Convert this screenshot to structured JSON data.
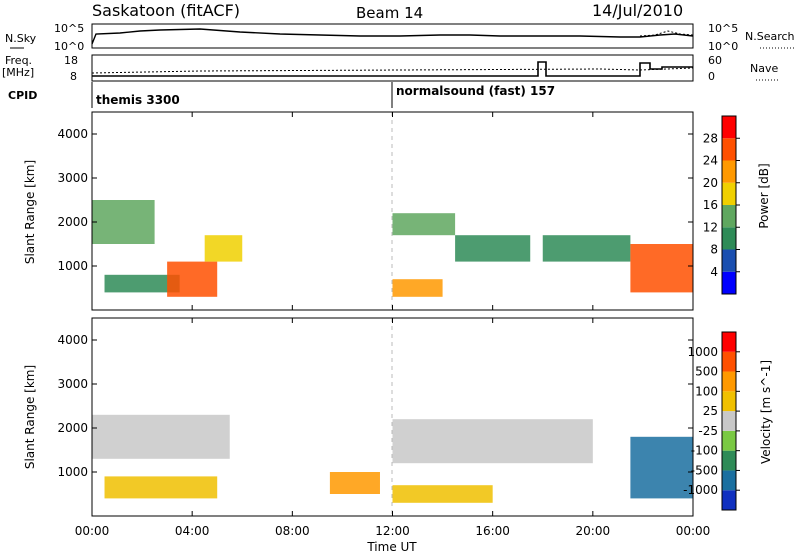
{
  "header": {
    "site": "Saskatoon (fitACF)",
    "beam": "Beam 14",
    "date": "14/Jul/2010"
  },
  "noise_panel": {
    "left_label": "N.Sky",
    "right_label": "N.Search",
    "left_ticks": [
      "10^5",
      "10^0"
    ],
    "right_ticks": [
      "10^5",
      "10^0"
    ]
  },
  "freq_panel": {
    "left_label_1": "Freq.",
    "left_label_2": "[MHz]",
    "left_ticks": [
      "18",
      "8"
    ],
    "right_label": "Nave",
    "right_ticks": [
      "60",
      "0"
    ]
  },
  "cpid_panel": {
    "label": "CPID",
    "segments": [
      {
        "label": "themis 3300",
        "start": "00:00"
      },
      {
        "label": "normalsound (fast) 157",
        "start": "12:00"
      }
    ]
  },
  "chart_data": [
    {
      "type": "heatmap",
      "quantity": "Power",
      "xlabel": "",
      "ylabel": "Slant Range [km]",
      "y_ticks": [
        "1000",
        "2000",
        "3000",
        "4000"
      ],
      "ylim": [
        0,
        4500
      ],
      "x_ticks": [
        "00:00",
        "04:00",
        "08:00",
        "12:00",
        "16:00",
        "20:00",
        "00:00"
      ],
      "colorbar": {
        "label": "Power [dB]",
        "ticks": [
          "4",
          "8",
          "12",
          "16",
          "20",
          "24",
          "28"
        ],
        "colors": [
          "#0000ff",
          "#1a4fb0",
          "#2e8b57",
          "#5fa75f",
          "#f0d000",
          "#ff9900",
          "#ff5000",
          "#ff0000"
        ]
      },
      "regions": [
        {
          "t0": 0.0,
          "t1": 2.5,
          "r0": 1500,
          "r1": 2500,
          "level": 14
        },
        {
          "t0": 0.5,
          "t1": 3.5,
          "r0": 400,
          "r1": 800,
          "level": 10
        },
        {
          "t0": 3.0,
          "t1": 5.0,
          "r0": 300,
          "r1": 1100,
          "level": 26
        },
        {
          "t0": 4.5,
          "t1": 6.0,
          "r0": 1100,
          "r1": 1700,
          "level": 16
        },
        {
          "t0": 12.0,
          "t1": 14.0,
          "r0": 300,
          "r1": 700,
          "level": 22
        },
        {
          "t0": 12.0,
          "t1": 14.5,
          "r0": 1700,
          "r1": 2200,
          "level": 14
        },
        {
          "t0": 14.5,
          "t1": 17.5,
          "r0": 1100,
          "r1": 1700,
          "level": 8
        },
        {
          "t0": 18.0,
          "t1": 21.5,
          "r0": 1100,
          "r1": 1700,
          "level": 8
        },
        {
          "t0": 21.5,
          "t1": 24.0,
          "r0": 400,
          "r1": 1500,
          "level": 24
        }
      ]
    },
    {
      "type": "heatmap",
      "quantity": "Velocity",
      "xlabel": "Time UT",
      "ylabel": "Slant Range [km]",
      "y_ticks": [
        "1000",
        "2000",
        "3000",
        "4000"
      ],
      "ylim": [
        0,
        4500
      ],
      "x_ticks": [
        "00:00",
        "04:00",
        "08:00",
        "12:00",
        "16:00",
        "20:00",
        "00:00"
      ],
      "colorbar": {
        "label": "Velocity [m s^-1]",
        "ticks": [
          "1000",
          "500",
          "100",
          "25",
          "-25",
          "-100",
          "-500",
          "-1000"
        ],
        "colors": [
          "#1030c0",
          "#1a6fa0",
          "#2e8b57",
          "#7ac943",
          "#c8c8c8",
          "#f0c000",
          "#ff9900",
          "#ff5000",
          "#ff0000"
        ]
      },
      "regions": [
        {
          "t0": 0.0,
          "t1": 5.5,
          "r0": 1300,
          "r1": 2300,
          "level": 0
        },
        {
          "t0": 0.5,
          "t1": 5.0,
          "r0": 400,
          "r1": 900,
          "level": -50
        },
        {
          "t0": 9.5,
          "t1": 11.5,
          "r0": 500,
          "r1": 1000,
          "level": -300
        },
        {
          "t0": 12.0,
          "t1": 16.0,
          "r0": 300,
          "r1": 700,
          "level": -60
        },
        {
          "t0": 12.0,
          "t1": 20.0,
          "r0": 1200,
          "r1": 2200,
          "level": 0
        },
        {
          "t0": 21.5,
          "t1": 24.0,
          "r0": 400,
          "r1": 1800,
          "level": 700
        }
      ]
    }
  ]
}
